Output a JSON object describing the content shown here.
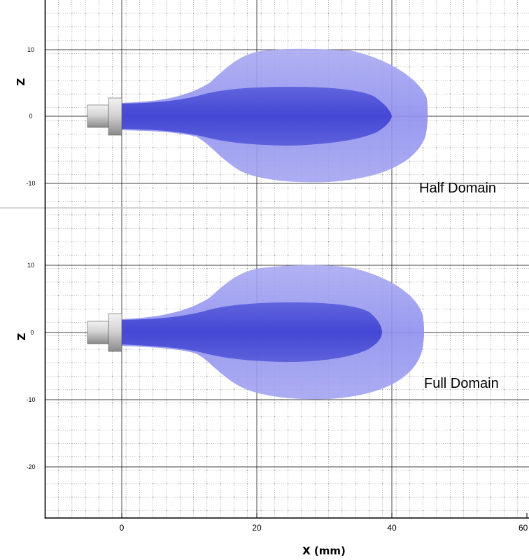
{
  "x_axis": {
    "label": "X (mm)",
    "ticks": [
      "0",
      "20",
      "40",
      "60"
    ]
  },
  "panels": [
    {
      "z_label": "Z",
      "label": "Half Domain",
      "z_ticks": [
        "10",
        "0",
        "-10"
      ]
    },
    {
      "z_label": "Z",
      "label": "Full Domain",
      "z_ticks": [
        "10",
        "0",
        "-10",
        "-20"
      ]
    }
  ],
  "colors": {
    "outer_plume": "#8f90ee",
    "inner_plume": "#4b4fd6",
    "nozzle": "#c8c8c8",
    "grid": "#000000"
  }
}
